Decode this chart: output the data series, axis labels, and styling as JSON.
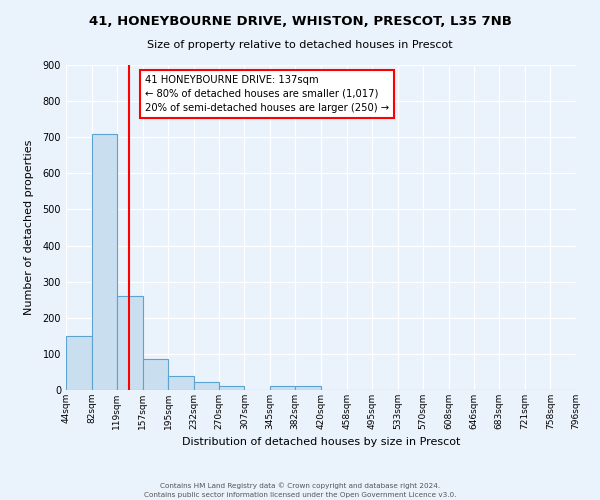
{
  "title": "41, HONEYBOURNE DRIVE, WHISTON, PRESCOT, L35 7NB",
  "subtitle": "Size of property relative to detached houses in Prescot",
  "xlabel": "Distribution of detached houses by size in Prescot",
  "ylabel": "Number of detached properties",
  "bar_edges": [
    44,
    82,
    119,
    157,
    195,
    232,
    270,
    307,
    345,
    382,
    420,
    458,
    495,
    533,
    570,
    608,
    646,
    683,
    721,
    758,
    796
  ],
  "bar_heights": [
    150,
    710,
    260,
    85,
    38,
    22,
    10,
    0,
    10,
    10,
    0,
    0,
    0,
    0,
    0,
    0,
    0,
    0,
    0,
    0
  ],
  "bar_color": "#c9dff0",
  "bar_edge_color": "#5ba3d0",
  "red_line_x": 137,
  "annotation_line1": "41 HONEYBOURNE DRIVE: 137sqm",
  "annotation_line2": "← 80% of detached houses are smaller (1,017)",
  "annotation_line3": "20% of semi-detached houses are larger (250) →",
  "ylim": [
    0,
    900
  ],
  "yticks": [
    0,
    100,
    200,
    300,
    400,
    500,
    600,
    700,
    800,
    900
  ],
  "footer_line1": "Contains HM Land Registry data © Crown copyright and database right 2024.",
  "footer_line2": "Contains public sector information licensed under the Open Government Licence v3.0.",
  "bg_color": "#eaf2fb",
  "plot_bg_color": "#eaf2fb"
}
